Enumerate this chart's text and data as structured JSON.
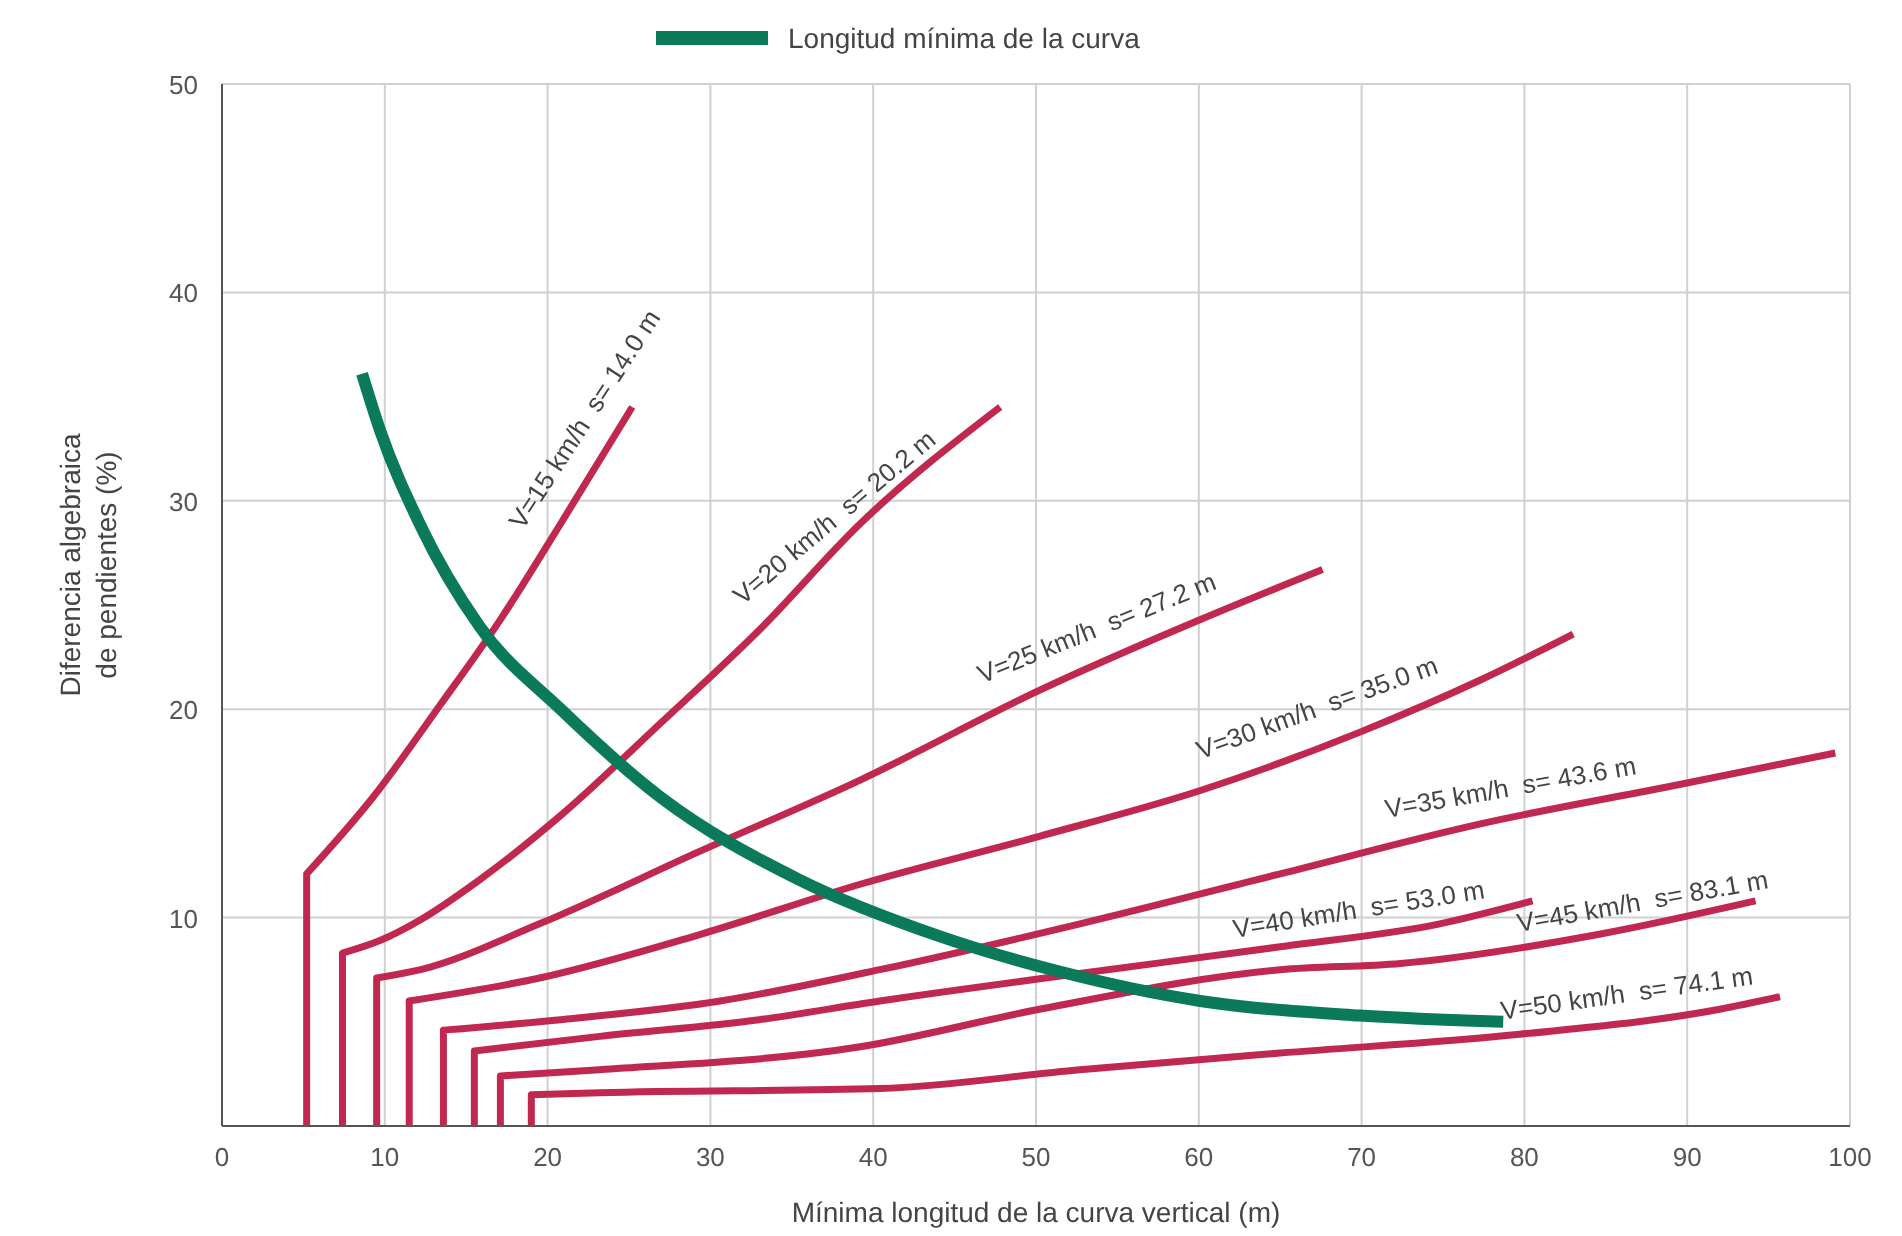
{
  "chart_data": {
    "type": "line",
    "xlabel": "Mínima longitud de la curva vertical (m)",
    "ylabel": "Diferencia algebraica de pendientes (%)",
    "xlim": [
      0,
      100
    ],
    "xticks": [
      0,
      10,
      20,
      30,
      40,
      50,
      60,
      70,
      80,
      90,
      100
    ],
    "ylim": [
      0,
      50
    ],
    "yticks": [
      {
        "value": 0,
        "label": null
      },
      10,
      20,
      30,
      40,
      50
    ],
    "grid": true,
    "legend": "top",
    "marker": "none",
    "line_style": "solid",
    "series": [
      {
        "name": "V=15 km/h  s= 14.0 m",
        "color": "#c0284f",
        "x": [
          5.2,
          5.2,
          9.3,
          13.4,
          17.1,
          20.8,
          25.2
        ],
        "values": [
          0,
          12.1,
          15.8,
          20.2,
          24.3,
          28.9,
          34.5
        ]
      },
      {
        "name": "V=20 km/h  s= 20.2 m",
        "color": "#c0284f",
        "x": [
          7.4,
          7.4,
          9.7,
          12.2,
          15.8,
          20.8,
          26.9,
          33,
          39.2,
          47.8
        ],
        "values": [
          0,
          8.3,
          8.9,
          9.9,
          11.8,
          14.9,
          19.3,
          23.8,
          28.9,
          34.5
        ]
      },
      {
        "name": "V=25 km/h  s= 27.2 m",
        "color": "#c0284f",
        "x": [
          9.5,
          9.5,
          12.2,
          19.5,
          29.4,
          39.2,
          50.2,
          60.1,
          67.6
        ],
        "values": [
          0,
          7.1,
          7.5,
          9.7,
          13.2,
          16.6,
          20.9,
          24.3,
          26.7
        ]
      },
      {
        "name": "V=30 km/h  s= 35.0 m",
        "color": "#c0284f",
        "x": [
          11.5,
          11.5,
          19.5,
          29.4,
          39.2,
          50.2,
          60.1,
          69.9,
          77.3,
          83
        ],
        "values": [
          0,
          6,
          7.1,
          9.2,
          11.6,
          13.9,
          16.1,
          18.9,
          21.4,
          23.6
        ]
      },
      {
        "name": "V=35 km/h  s= 43.6 m",
        "color": "#c0284f",
        "x": [
          13.6,
          13.6,
          20.8,
          30.6,
          40.4,
          52.7,
          65,
          77.3,
          89.6,
          99.1
        ],
        "values": [
          0,
          4.6,
          5.1,
          6,
          7.5,
          9.7,
          12.1,
          14.5,
          16.4,
          17.9
        ]
      },
      {
        "name": "V=40 km/h  s= 53.0 m",
        "color": "#c0284f",
        "x": [
          15.5,
          15.5,
          23.2,
          33,
          40.4,
          51.5,
          65,
          74.8,
          80.5
        ],
        "values": [
          0,
          3.6,
          4.3,
          5.1,
          6,
          7.2,
          8.6,
          9.7,
          10.8
        ]
      },
      {
        "name": "V=45 km/h  s= 83.1 m",
        "color": "#c0284f",
        "x": [
          17.1,
          17.1,
          23.2,
          39.2,
          50.2,
          65,
          72.4,
          84.6,
          94.2
        ],
        "values": [
          0,
          2.4,
          2.7,
          3.8,
          5.6,
          7.5,
          7.8,
          9.2,
          10.8
        ]
      },
      {
        "name": "V=50 km/h  s= 74.1 m",
        "color": "#c0284f",
        "x": [
          19,
          19,
          23.2,
          40.4,
          52.7,
          65,
          79.7,
          92,
          95.7
        ],
        "values": [
          0,
          1.5,
          1.6,
          1.8,
          2.7,
          3.5,
          4.4,
          5.6,
          6.2
        ]
      },
      {
        "name": "Longitud mínima de la curva",
        "color": "#0b7a5a",
        "x": [
          8.6,
          9.7,
          12.2,
          15.8,
          20.8,
          26.9,
          35.5,
          44.1,
          51.5,
          60.1,
          69.9,
          78.7
        ],
        "values": [
          36.1,
          33.4,
          28.8,
          24,
          20,
          15.8,
          11.8,
          9.1,
          7.4,
          6,
          5.3,
          5
        ]
      }
    ]
  }
}
